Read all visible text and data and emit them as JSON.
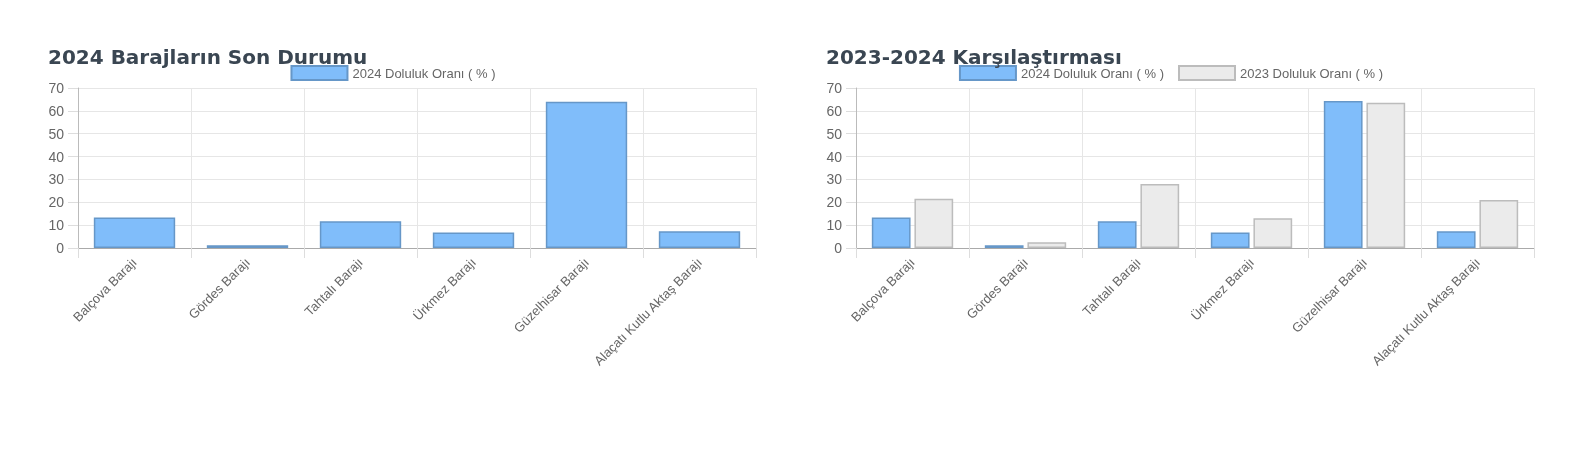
{
  "chart_data": [
    {
      "type": "bar",
      "title": "2024 Barajların Son Durumu",
      "categories": [
        "Balçova Barajı",
        "Gördes Barajı",
        "Tahtalı Barajı",
        "Ürkmez Barajı",
        "Güzelhisar Barajı",
        "Alaçatı Kutlu Aktaş Barajı"
      ],
      "series": [
        {
          "name": "2024 Doluluk Oranı ( % )",
          "color": "#80bdfa",
          "values": [
            13.3,
            1.2,
            11.7,
            6.8,
            64,
            7.3
          ]
        }
      ],
      "ylim": [
        0,
        70
      ],
      "yticks": [
        0,
        10,
        20,
        30,
        40,
        50,
        60,
        70
      ],
      "grid": true,
      "legend": "top"
    },
    {
      "type": "bar",
      "title": "2023-2024 Karşılaştırması",
      "categories": [
        "Balçova Barajı",
        "Gördes Barajı",
        "Tahtalı Barajı",
        "Ürkmez Barajı",
        "Güzelhisar Barajı",
        "Alaçatı Kutlu Aktaş Barajı"
      ],
      "series": [
        {
          "name": "2024 Doluluk Oranı ( % )",
          "color": "#80bdfa",
          "values": [
            13.3,
            1.2,
            11.7,
            6.8,
            64.3,
            7.3
          ]
        },
        {
          "name": "2023 Doluluk Oranı ( % )",
          "color": "#ebebeb",
          "values": [
            21.5,
            2.5,
            28,
            13,
            63.5,
            21
          ]
        }
      ],
      "ylim": [
        0,
        70
      ],
      "yticks": [
        0,
        10,
        20,
        30,
        40,
        50,
        60,
        70
      ],
      "grid": true,
      "legend": "top"
    }
  ]
}
